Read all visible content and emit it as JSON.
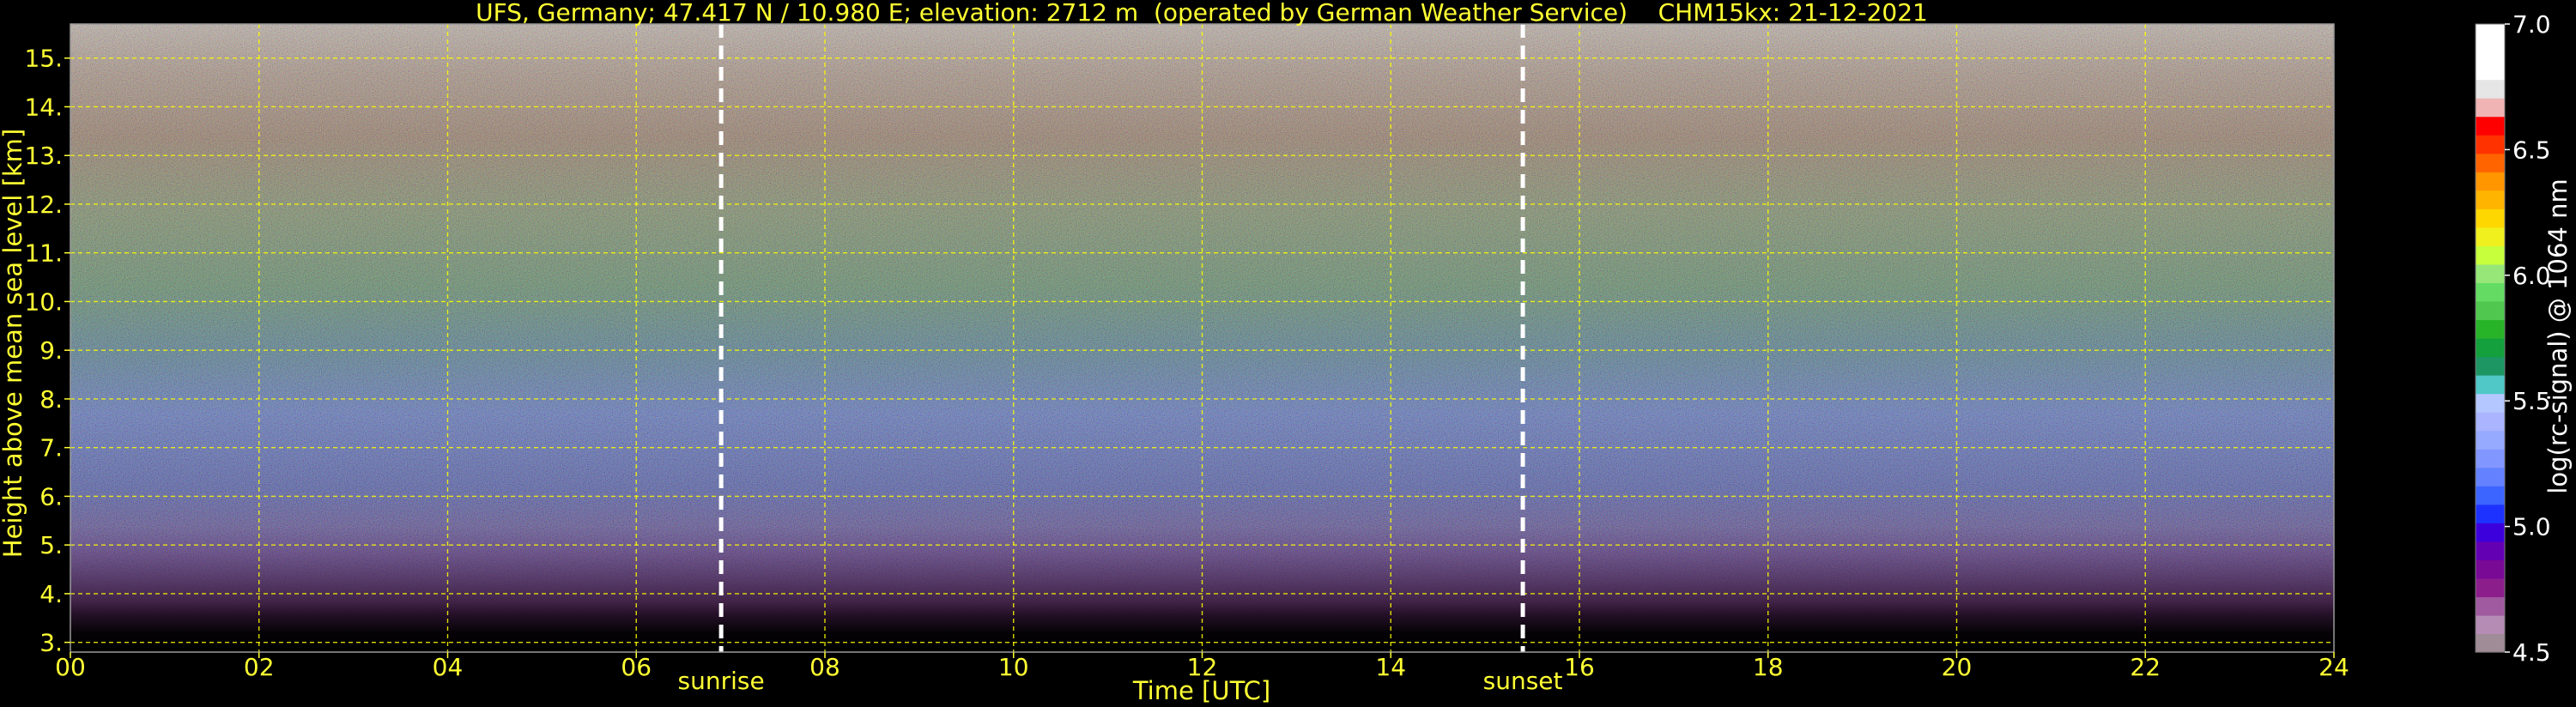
{
  "chart_data": {
    "type": "heatmap",
    "title": "UFS, Germany; 47.417 N / 10.980 E; elevation: 2712 m  (operated by German Weather Service)    CHM15kx: 21-12-2021",
    "xlabel": "Time [UTC]",
    "ylabel": "Height above mean sea level [km]",
    "xlim": [
      0,
      24
    ],
    "ylim": [
      2.8,
      15.7
    ],
    "x_ticks": [
      0,
      2,
      4,
      6,
      8,
      10,
      12,
      14,
      16,
      18,
      20,
      22,
      24
    ],
    "x_tick_labels": [
      "00",
      "02",
      "04",
      "06",
      "08",
      "10",
      "12",
      "14",
      "16",
      "18",
      "20",
      "22",
      "24"
    ],
    "y_ticks": [
      3,
      4,
      5,
      6,
      7,
      8,
      9,
      10,
      11,
      12,
      13,
      14,
      15
    ],
    "y_tick_labels": [
      "3.",
      "4.",
      "5.",
      "6.",
      "7.",
      "8.",
      "9.",
      "10.",
      "11.",
      "12.",
      "13.",
      "14.",
      "15."
    ],
    "grid": true,
    "grid_color": "#ffff00",
    "vertical_markers": [
      {
        "label": "sunrise",
        "x": 6.9
      },
      {
        "label": "sunset",
        "x": 15.4
      }
    ],
    "colorbar": {
      "label": "log(rc-signal) @ 1064 nm",
      "range": [
        4.5,
        7.0
      ],
      "ticks": [
        4.5,
        5.0,
        5.5,
        6.0,
        6.5,
        7.0
      ],
      "tick_labels": [
        "4.5",
        "5.0",
        "5.5",
        "6.0",
        "6.5",
        "7.0"
      ],
      "colors": [
        "#a08c96",
        "#b48cb4",
        "#a05aa0",
        "#8c1e8c",
        "#780a96",
        "#6400b4",
        "#3c00dc",
        "#1e32ff",
        "#3c64ff",
        "#6482ff",
        "#8296ff",
        "#96aaff",
        "#aab4ff",
        "#b4c8ff",
        "#50c8c8",
        "#1e9664",
        "#14a03c",
        "#28b428",
        "#50c850",
        "#64dc64",
        "#96e678",
        "#c8ff3c",
        "#f0f01e",
        "#ffd700",
        "#ffb400",
        "#ff9600",
        "#ff6400",
        "#ff3200",
        "#ff0000",
        "#f0b4b4",
        "#e6e6e6",
        "#ffffff",
        "#ffffff",
        "#ffffff"
      ]
    }
  }
}
